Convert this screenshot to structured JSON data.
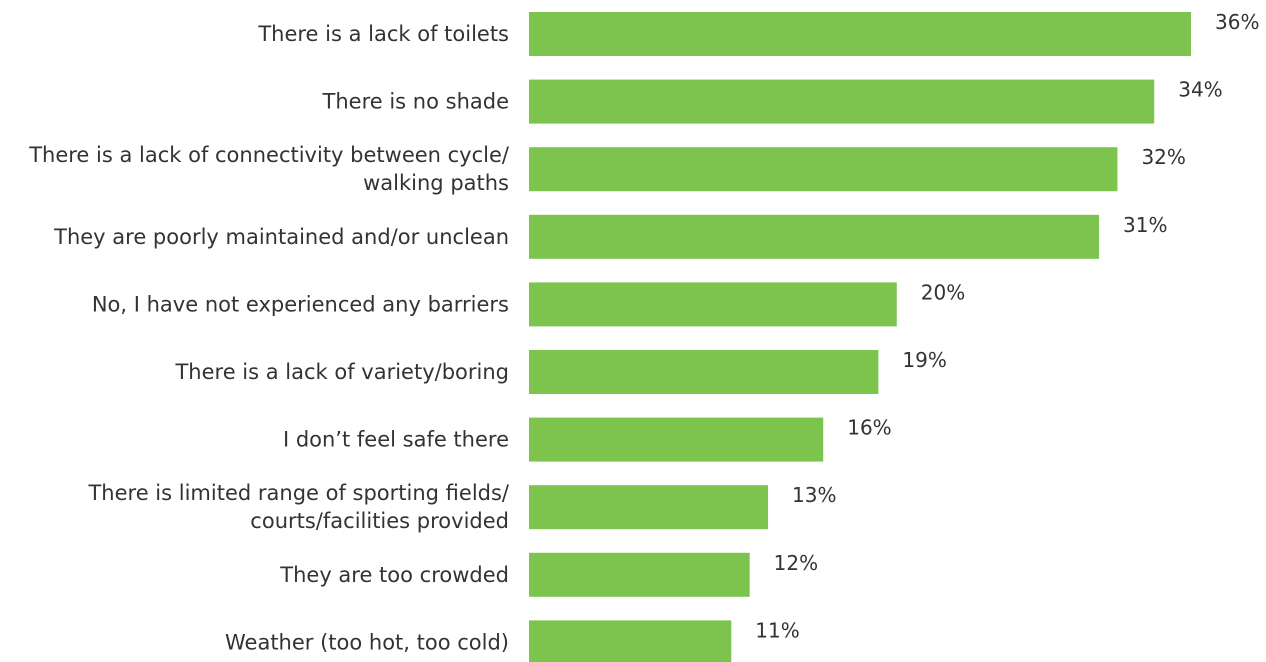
{
  "chart_data": {
    "type": "bar",
    "orientation": "horizontal",
    "categories": [
      [
        "There is a lack of toilets"
      ],
      [
        "There is no shade"
      ],
      [
        "There is a lack of connectivity between cycle/",
        "walking paths"
      ],
      [
        "They are poorly maintained and/or unclean"
      ],
      [
        "No, I have not experienced any barriers"
      ],
      [
        "There is a lack of variety/boring"
      ],
      [
        "I don’t feel safe there"
      ],
      [
        "There is limited range of sporting fields/",
        "courts/facilities provided"
      ],
      [
        "They are too crowded"
      ],
      [
        "Weather (too hot, too cold)"
      ]
    ],
    "values": [
      36,
      34,
      32,
      31,
      20,
      19,
      16,
      13,
      12,
      11
    ],
    "value_labels": [
      "36%",
      "34%",
      "32%",
      "31%",
      "20%",
      "19%",
      "16%",
      "13%",
      "12%",
      "11%"
    ],
    "xlim": [
      0,
      36
    ],
    "bar_color": "#7dc44e",
    "text_color": "#333333",
    "grid": false,
    "legend": "none"
  }
}
